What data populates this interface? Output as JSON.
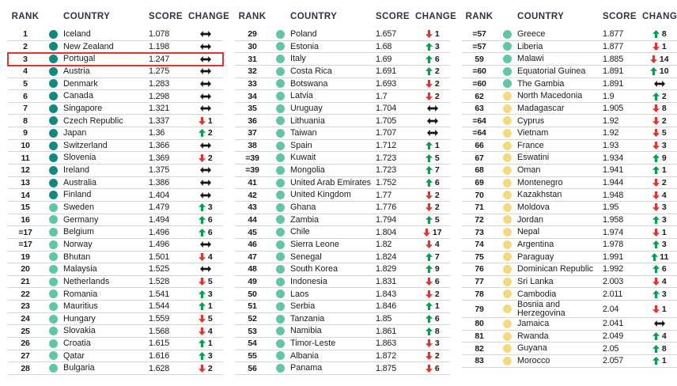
{
  "headers": {
    "rank": "RANK",
    "country": "COUNTRY",
    "score": "SCORE",
    "change": "CHANGE"
  },
  "colors": {
    "tier1": "#0E8A7F",
    "tier2": "#60C6A4",
    "tier3": "#F3D97F",
    "up": "#00A24F",
    "down": "#E5322B",
    "same": "#161616",
    "header_text": "#2F3342",
    "text": "#1B1B1B",
    "divider": "#D6D6D6",
    "highlight": "#E8312A"
  },
  "groups": [
    {
      "rows": [
        {
          "rank": "1",
          "country": "Iceland",
          "score": "1.078",
          "dir": "same",
          "delta": "",
          "tier": 1,
          "highlight": false
        },
        {
          "rank": "2",
          "country": "New Zealand",
          "score": "1.198",
          "dir": "same",
          "delta": "",
          "tier": 1,
          "highlight": false
        },
        {
          "rank": "3",
          "country": "Portugal",
          "score": "1.247",
          "dir": "same",
          "delta": "",
          "tier": 1,
          "highlight": true
        },
        {
          "rank": "4",
          "country": "Austria",
          "score": "1.275",
          "dir": "same",
          "delta": "",
          "tier": 1,
          "highlight": false
        },
        {
          "rank": "5",
          "country": "Denmark",
          "score": "1.283",
          "dir": "same",
          "delta": "",
          "tier": 1,
          "highlight": false
        },
        {
          "rank": "6",
          "country": "Canada",
          "score": "1.298",
          "dir": "same",
          "delta": "",
          "tier": 1,
          "highlight": false
        },
        {
          "rank": "7",
          "country": "Singapore",
          "score": "1.321",
          "dir": "same",
          "delta": "",
          "tier": 1,
          "highlight": false
        },
        {
          "rank": "8",
          "country": "Czech Republic",
          "score": "1.337",
          "dir": "down",
          "delta": "1",
          "tier": 1,
          "highlight": false
        },
        {
          "rank": "9",
          "country": "Japan",
          "score": "1.36",
          "dir": "up",
          "delta": "2",
          "tier": 1,
          "highlight": false
        },
        {
          "rank": "10",
          "country": "Switzerland",
          "score": "1.366",
          "dir": "same",
          "delta": "",
          "tier": 1,
          "highlight": false
        },
        {
          "rank": "11",
          "country": "Slovenia",
          "score": "1.369",
          "dir": "down",
          "delta": "2",
          "tier": 1,
          "highlight": false
        },
        {
          "rank": "12",
          "country": "Ireland",
          "score": "1.375",
          "dir": "same",
          "delta": "",
          "tier": 1,
          "highlight": false
        },
        {
          "rank": "13",
          "country": "Australia",
          "score": "1.386",
          "dir": "same",
          "delta": "",
          "tier": 1,
          "highlight": false
        },
        {
          "rank": "14",
          "country": "Finland",
          "score": "1.404",
          "dir": "same",
          "delta": "",
          "tier": 1,
          "highlight": false
        },
        {
          "rank": "15",
          "country": "Sweden",
          "score": "1.479",
          "dir": "up",
          "delta": "3",
          "tier": 2,
          "highlight": false
        },
        {
          "rank": "16",
          "country": "Germany",
          "score": "1.494",
          "dir": "up",
          "delta": "6",
          "tier": 2,
          "highlight": false
        },
        {
          "rank": "=17",
          "country": "Belgium",
          "score": "1.496",
          "dir": "up",
          "delta": "6",
          "tier": 2,
          "highlight": false
        },
        {
          "rank": "=17",
          "country": "Norway",
          "score": "1.496",
          "dir": "same",
          "delta": "",
          "tier": 2,
          "highlight": false
        },
        {
          "rank": "19",
          "country": "Bhutan",
          "score": "1.501",
          "dir": "down",
          "delta": "4",
          "tier": 2,
          "highlight": false
        },
        {
          "rank": "20",
          "country": "Malaysia",
          "score": "1.525",
          "dir": "same",
          "delta": "",
          "tier": 2,
          "highlight": false
        },
        {
          "rank": "21",
          "country": "Netherlands",
          "score": "1.528",
          "dir": "down",
          "delta": "5",
          "tier": 2,
          "highlight": false
        },
        {
          "rank": "22",
          "country": "Romania",
          "score": "1.541",
          "dir": "up",
          "delta": "3",
          "tier": 2,
          "highlight": false
        },
        {
          "rank": "23",
          "country": "Mauritius",
          "score": "1.544",
          "dir": "up",
          "delta": "1",
          "tier": 2,
          "highlight": false
        },
        {
          "rank": "24",
          "country": "Hungary",
          "score": "1.559",
          "dir": "down",
          "delta": "5",
          "tier": 2,
          "highlight": false
        },
        {
          "rank": "25",
          "country": "Slovakia",
          "score": "1.568",
          "dir": "down",
          "delta": "4",
          "tier": 2,
          "highlight": false
        },
        {
          "rank": "26",
          "country": "Croatia",
          "score": "1.615",
          "dir": "up",
          "delta": "1",
          "tier": 2,
          "highlight": false
        },
        {
          "rank": "27",
          "country": "Qatar",
          "score": "1.616",
          "dir": "up",
          "delta": "3",
          "tier": 2,
          "highlight": false
        },
        {
          "rank": "28",
          "country": "Bulgaria",
          "score": "1.628",
          "dir": "down",
          "delta": "2",
          "tier": 2,
          "highlight": false
        }
      ]
    },
    {
      "rows": [
        {
          "rank": "29",
          "country": "Poland",
          "score": "1.657",
          "dir": "down",
          "delta": "1",
          "tier": 2,
          "highlight": false
        },
        {
          "rank": "30",
          "country": "Estonia",
          "score": "1.68",
          "dir": "up",
          "delta": "3",
          "tier": 2,
          "highlight": false
        },
        {
          "rank": "31",
          "country": "Italy",
          "score": "1.69",
          "dir": "up",
          "delta": "6",
          "tier": 2,
          "highlight": false
        },
        {
          "rank": "32",
          "country": "Costa Rica",
          "score": "1.691",
          "dir": "up",
          "delta": "2",
          "tier": 2,
          "highlight": false
        },
        {
          "rank": "33",
          "country": "Botswana",
          "score": "1.693",
          "dir": "down",
          "delta": "2",
          "tier": 2,
          "highlight": false
        },
        {
          "rank": "34",
          "country": "Latvia",
          "score": "1.7",
          "dir": "down",
          "delta": "2",
          "tier": 2,
          "highlight": false
        },
        {
          "rank": "35",
          "country": "Uruguay",
          "score": "1.704",
          "dir": "same",
          "delta": "",
          "tier": 2,
          "highlight": false
        },
        {
          "rank": "36",
          "country": "Lithuania",
          "score": "1.705",
          "dir": "same",
          "delta": "",
          "tier": 2,
          "highlight": false
        },
        {
          "rank": "37",
          "country": "Taiwan",
          "score": "1.707",
          "dir": "same",
          "delta": "",
          "tier": 2,
          "highlight": false
        },
        {
          "rank": "38",
          "country": "Spain",
          "score": "1.712",
          "dir": "up",
          "delta": "1",
          "tier": 2,
          "highlight": false
        },
        {
          "rank": "=39",
          "country": "Kuwait",
          "score": "1.723",
          "dir": "up",
          "delta": "5",
          "tier": 2,
          "highlight": false
        },
        {
          "rank": "=39",
          "country": "Mongolia",
          "score": "1.723",
          "dir": "up",
          "delta": "7",
          "tier": 2,
          "highlight": false
        },
        {
          "rank": "41",
          "country": "United Arab Emirates",
          "score": "1.752",
          "dir": "up",
          "delta": "6",
          "tier": 2,
          "highlight": false
        },
        {
          "rank": "42",
          "country": "United Kingdom",
          "score": "1.77",
          "dir": "down",
          "delta": "2",
          "tier": 2,
          "highlight": false
        },
        {
          "rank": "43",
          "country": "Ghana",
          "score": "1.776",
          "dir": "down",
          "delta": "2",
          "tier": 2,
          "highlight": false
        },
        {
          "rank": "44",
          "country": "Zambia",
          "score": "1.794",
          "dir": "up",
          "delta": "5",
          "tier": 2,
          "highlight": false
        },
        {
          "rank": "45",
          "country": "Chile",
          "score": "1.804",
          "dir": "down",
          "delta": "17",
          "tier": 2,
          "highlight": false
        },
        {
          "rank": "46",
          "country": "Sierra Leone",
          "score": "1.82",
          "dir": "down",
          "delta": "4",
          "tier": 2,
          "highlight": false
        },
        {
          "rank": "47",
          "country": "Senegal",
          "score": "1.824",
          "dir": "up",
          "delta": "7",
          "tier": 2,
          "highlight": false
        },
        {
          "rank": "48",
          "country": "South Korea",
          "score": "1.829",
          "dir": "up",
          "delta": "9",
          "tier": 2,
          "highlight": false
        },
        {
          "rank": "49",
          "country": "Indonesia",
          "score": "1.831",
          "dir": "down",
          "delta": "6",
          "tier": 2,
          "highlight": false
        },
        {
          "rank": "50",
          "country": "Laos",
          "score": "1.843",
          "dir": "down",
          "delta": "2",
          "tier": 2,
          "highlight": false
        },
        {
          "rank": "51",
          "country": "Serbia",
          "score": "1.846",
          "dir": "up",
          "delta": "1",
          "tier": 2,
          "highlight": false
        },
        {
          "rank": "52",
          "country": "Tanzania",
          "score": "1.85",
          "dir": "up",
          "delta": "6",
          "tier": 2,
          "highlight": false
        },
        {
          "rank": "53",
          "country": "Namibia",
          "score": "1.861",
          "dir": "up",
          "delta": "8",
          "tier": 2,
          "highlight": false
        },
        {
          "rank": "54",
          "country": "Timor-Leste",
          "score": "1.863",
          "dir": "down",
          "delta": "3",
          "tier": 2,
          "highlight": false
        },
        {
          "rank": "55",
          "country": "Albania",
          "score": "1.872",
          "dir": "down",
          "delta": "2",
          "tier": 2,
          "highlight": false
        },
        {
          "rank": "56",
          "country": "Panama",
          "score": "1.875",
          "dir": "down",
          "delta": "6",
          "tier": 2,
          "highlight": false
        }
      ]
    },
    {
      "rows": [
        {
          "rank": "=57",
          "country": "Greece",
          "score": "1.877",
          "dir": "up",
          "delta": "8",
          "tier": 2,
          "highlight": false
        },
        {
          "rank": "=57",
          "country": "Liberia",
          "score": "1.877",
          "dir": "down",
          "delta": "1",
          "tier": 2,
          "highlight": false
        },
        {
          "rank": "59",
          "country": "Malawi",
          "score": "1.885",
          "dir": "down",
          "delta": "14",
          "tier": 2,
          "highlight": false
        },
        {
          "rank": "=60",
          "country": "Equatorial Guinea",
          "score": "1.891",
          "dir": "up",
          "delta": "10",
          "tier": 2,
          "highlight": false
        },
        {
          "rank": "=60",
          "country": "The Gambia",
          "score": "1.891",
          "dir": "same",
          "delta": "",
          "tier": 2,
          "highlight": false
        },
        {
          "rank": "62",
          "country": "North Macedonia",
          "score": "1.9",
          "dir": "up",
          "delta": "2",
          "tier": 3,
          "highlight": false
        },
        {
          "rank": "63",
          "country": "Madagascar",
          "score": "1.905",
          "dir": "down",
          "delta": "8",
          "tier": 3,
          "highlight": false
        },
        {
          "rank": "=64",
          "country": "Cyprus",
          "score": "1.92",
          "dir": "down",
          "delta": "2",
          "tier": 3,
          "highlight": false
        },
        {
          "rank": "=64",
          "country": "Vietnam",
          "score": "1.92",
          "dir": "down",
          "delta": "5",
          "tier": 3,
          "highlight": false
        },
        {
          "rank": "66",
          "country": "France",
          "score": "1.93",
          "dir": "down",
          "delta": "3",
          "tier": 3,
          "highlight": false
        },
        {
          "rank": "67",
          "country": "Eswatini",
          "score": "1.934",
          "dir": "up",
          "delta": "9",
          "tier": 3,
          "highlight": false
        },
        {
          "rank": "68",
          "country": "Oman",
          "score": "1.941",
          "dir": "up",
          "delta": "1",
          "tier": 3,
          "highlight": false
        },
        {
          "rank": "69",
          "country": "Montenegro",
          "score": "1.944",
          "dir": "down",
          "delta": "2",
          "tier": 3,
          "highlight": false
        },
        {
          "rank": "70",
          "country": "Kazakhstan",
          "score": "1.948",
          "dir": "down",
          "delta": "4",
          "tier": 3,
          "highlight": false
        },
        {
          "rank": "71",
          "country": "Moldova",
          "score": "1.95",
          "dir": "down",
          "delta": "3",
          "tier": 3,
          "highlight": false
        },
        {
          "rank": "72",
          "country": "Jordan",
          "score": "1.958",
          "dir": "up",
          "delta": "3",
          "tier": 3,
          "highlight": false
        },
        {
          "rank": "73",
          "country": "Nepal",
          "score": "1.974",
          "dir": "down",
          "delta": "1",
          "tier": 3,
          "highlight": false
        },
        {
          "rank": "74",
          "country": "Argentina",
          "score": "1.978",
          "dir": "up",
          "delta": "3",
          "tier": 3,
          "highlight": false
        },
        {
          "rank": "75",
          "country": "Paraguay",
          "score": "1.991",
          "dir": "up",
          "delta": "11",
          "tier": 3,
          "highlight": false
        },
        {
          "rank": "76",
          "country": "Dominican Republic",
          "score": "1.992",
          "dir": "up",
          "delta": "6",
          "tier": 3,
          "highlight": false
        },
        {
          "rank": "77",
          "country": "Sri Lanka",
          "score": "2.003",
          "dir": "down",
          "delta": "4",
          "tier": 3,
          "highlight": false
        },
        {
          "rank": "78",
          "country": "Cambodia",
          "score": "2.011",
          "dir": "up",
          "delta": "3",
          "tier": 3,
          "highlight": false
        },
        {
          "rank": "79",
          "country": "Bosnia and Herzegovina",
          "score": "2.04",
          "dir": "down",
          "delta": "1",
          "tier": 3,
          "highlight": false
        },
        {
          "rank": "80",
          "country": "Jamaica",
          "score": "2.041",
          "dir": "same",
          "delta": "",
          "tier": 3,
          "highlight": false
        },
        {
          "rank": "81",
          "country": "Rwanda",
          "score": "2.049",
          "dir": "up",
          "delta": "4",
          "tier": 3,
          "highlight": false
        },
        {
          "rank": "82",
          "country": "Guyana",
          "score": "2.05",
          "dir": "up",
          "delta": "8",
          "tier": 3,
          "highlight": false
        },
        {
          "rank": "83",
          "country": "Morocco",
          "score": "2.057",
          "dir": "up",
          "delta": "1",
          "tier": 3,
          "highlight": false
        }
      ]
    }
  ]
}
